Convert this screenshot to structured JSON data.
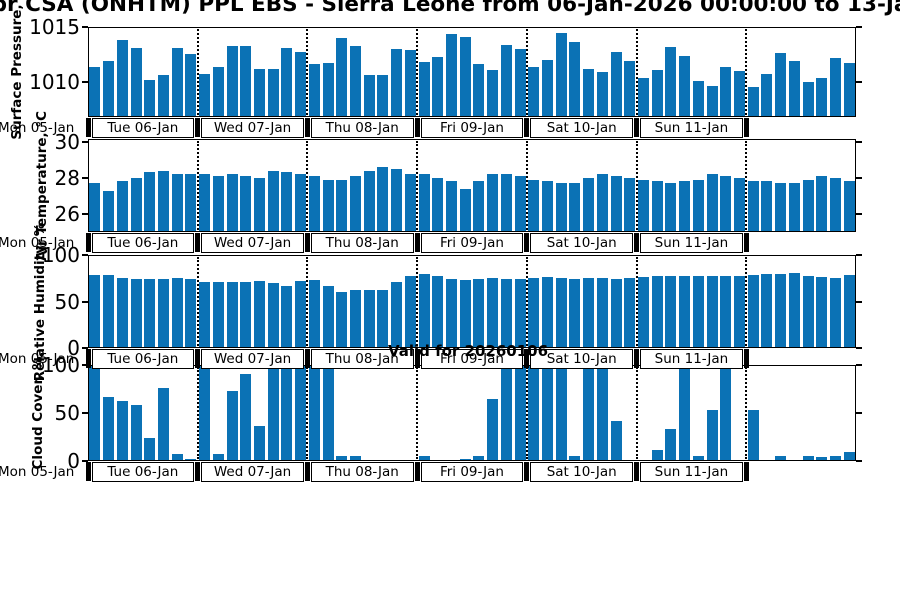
{
  "title": "pr CSA (ONHTM) PPL EBS  - Sierra Leone from 06-Jan-2026 00:00:00 to 13-Ja",
  "annotation": "Valid for 20260106",
  "colors": {
    "bar": "#0b72b5",
    "axis": "#000000",
    "background": "#ffffff"
  },
  "x_axis": {
    "left_edge_label": "Mon 05-Jan",
    "day_labels": [
      "Tue 06-Jan",
      "Wed 07-Jan",
      "Thu 08-Jan",
      "Fri 09-Jan",
      "Sat 10-Jan",
      "Sun 11-Jan"
    ],
    "num_day_sections": 7,
    "bars_per_day": 8,
    "x_start": "06-Jan-2026 00:00",
    "x_step_hours": 3
  },
  "chart_data": [
    {
      "type": "bar",
      "name": "surface-pressure",
      "ylabel": "Surface Pressure,",
      "yticks": [
        1010,
        1015
      ],
      "ylim": [
        1006.8,
        1015
      ],
      "grid": "dotted vertical lines at day boundaries",
      "values": [
        1011.4,
        1011.9,
        1013.8,
        1013.1,
        1010.2,
        1010.6,
        1013.1,
        1012.5,
        1010.7,
        1011.4,
        1013.3,
        1013.3,
        1011.2,
        1011.2,
        1013.1,
        1012.7,
        1011.6,
        1011.7,
        1014.0,
        1013.3,
        1010.6,
        1010.6,
        1013.0,
        1012.9,
        1011.8,
        1012.3,
        1014.4,
        1014.1,
        1011.6,
        1011.1,
        1013.4,
        1013.0,
        1011.4,
        1012.0,
        1014.5,
        1013.6,
        1011.2,
        1010.9,
        1012.7,
        1011.9,
        1010.4,
        1011.1,
        1013.2,
        1012.4,
        1010.1,
        1009.6,
        1011.4,
        1011.0,
        1009.5,
        1010.7,
        1012.6,
        1011.9,
        1010.0,
        1010.4,
        1012.2,
        1011.7
      ]
    },
    {
      "type": "bar",
      "name": "air-temperature",
      "ylabel": "Air Temperature, °C",
      "yticks": [
        26,
        28,
        30
      ],
      "ylim": [
        25.0,
        30.15
      ],
      "grid": "dotted vertical lines at day boundaries",
      "values": [
        27.7,
        27.3,
        27.8,
        28.0,
        28.3,
        28.4,
        28.2,
        28.2,
        28.2,
        28.1,
        28.2,
        28.1,
        28.0,
        28.4,
        28.3,
        28.2,
        28.1,
        27.9,
        27.9,
        28.1,
        28.4,
        28.6,
        28.5,
        28.2,
        28.2,
        28.0,
        27.8,
        27.4,
        27.8,
        28.2,
        28.2,
        28.1,
        27.9,
        27.8,
        27.7,
        27.7,
        28.0,
        28.2,
        28.1,
        28.0,
        27.9,
        27.8,
        27.7,
        27.8,
        27.9,
        28.2,
        28.1,
        28.0,
        27.8,
        27.8,
        27.7,
        27.7,
        27.9,
        28.1,
        28.0,
        27.8
      ]
    },
    {
      "type": "bar",
      "name": "relative-humidity",
      "ylabel": "Relative Humidity, %",
      "yticks": [
        0,
        50,
        100
      ],
      "ylim": [
        0,
        100
      ],
      "grid": "dotted vertical lines at day boundaries",
      "values": [
        79,
        79,
        75,
        74,
        74,
        74,
        75,
        74,
        71,
        71,
        71,
        71,
        72,
        70,
        67,
        72,
        73,
        67,
        60,
        62,
        62,
        62,
        71,
        78,
        80,
        77,
        74,
        73,
        74,
        75,
        74,
        74,
        75,
        76,
        75,
        74,
        75,
        75,
        74,
        75,
        76,
        78,
        78,
        77,
        78,
        77,
        77,
        77,
        79,
        80,
        80,
        81,
        78,
        76,
        75,
        79
      ]
    },
    {
      "type": "bar",
      "name": "cloud-cover",
      "ylabel": "Cloud Cover, %",
      "yticks": [
        0,
        50,
        100
      ],
      "ylim": [
        0,
        100
      ],
      "grid": "dotted vertical lines at day boundaries",
      "values": [
        100,
        67,
        63,
        58,
        24,
        76,
        7,
        2,
        100,
        7,
        73,
        91,
        37,
        97,
        100,
        100,
        100,
        100,
        5,
        5,
        0,
        0,
        0,
        0,
        5,
        0,
        1,
        2,
        5,
        65,
        100,
        100,
        100,
        100,
        100,
        5,
        100,
        100,
        42,
        0,
        0,
        12,
        33,
        100,
        5,
        53,
        97,
        0,
        53,
        0,
        5,
        0,
        5,
        4,
        5,
        9
      ]
    }
  ]
}
